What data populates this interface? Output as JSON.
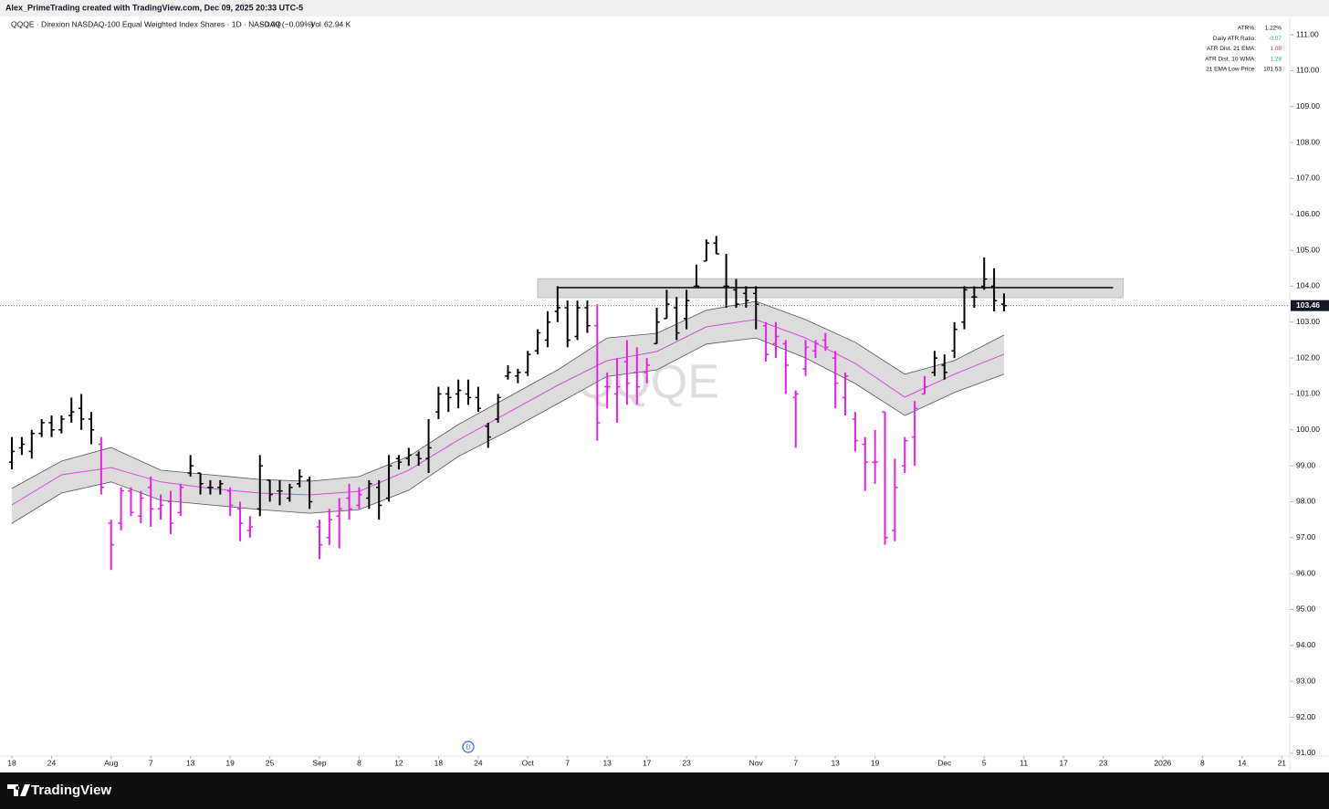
{
  "chart_data": {
    "type": "ohlc",
    "credit": "Alex_PrimeTrading created with TradingView.com, Dec 09, 2025 20:33 UTC-5",
    "title": "QQQE · Direxion NASDAQ-100 Equal Weighted Index Shares · 1D · NASDAQ",
    "change": "−0.09 (−0.09%)",
    "volume_label": "Vol",
    "volume": "62.94 K",
    "watermark": "QQQE",
    "brand": "TradingView",
    "info_table": [
      {
        "label": "ATR%:",
        "value": "1.22%",
        "color": "#131722"
      },
      {
        "label": "Daily ATR Ratio:",
        "value": "-0.07",
        "color": "#22ab94"
      },
      {
        "label": "ATR Dist. 21 EMA:",
        "value": "1.08",
        "color": "#f23645"
      },
      {
        "label": "ATR Dist. 10 WMA:",
        "value": "1.28",
        "color": "#22ab94"
      },
      {
        "label": "21 EMA Low Price:",
        "value": "101.53",
        "color": "#131722"
      }
    ],
    "xlim": [
      -1.2,
      128.8
    ],
    "xticks": [
      {
        "value": 0,
        "label": "18"
      },
      {
        "value": 4,
        "label": "24"
      },
      {
        "value": 10,
        "label": "Aug"
      },
      {
        "value": 14,
        "label": "7"
      },
      {
        "value": 18,
        "label": "13"
      },
      {
        "value": 22,
        "label": "19"
      },
      {
        "value": 26,
        "label": "25"
      },
      {
        "value": 31,
        "label": "Sep"
      },
      {
        "value": 35,
        "label": "8"
      },
      {
        "value": 39,
        "label": "12"
      },
      {
        "value": 43,
        "label": "18"
      },
      {
        "value": 47,
        "label": "24"
      },
      {
        "value": 52,
        "label": "Oct"
      },
      {
        "value": 56,
        "label": "7"
      },
      {
        "value": 60,
        "label": "13"
      },
      {
        "value": 64,
        "label": "17"
      },
      {
        "value": 68,
        "label": "23"
      },
      {
        "value": 75,
        "label": "Nov"
      },
      {
        "value": 79,
        "label": "7"
      },
      {
        "value": 83,
        "label": "13"
      },
      {
        "value": 87,
        "label": "19"
      },
      {
        "value": 94,
        "label": "Dec"
      },
      {
        "value": 98,
        "label": "5"
      },
      {
        "value": 102,
        "label": "11"
      },
      {
        "value": 106,
        "label": "17"
      },
      {
        "value": 110,
        "label": "23"
      },
      {
        "value": 116,
        "label": "2026"
      },
      {
        "value": 120,
        "label": "8"
      },
      {
        "value": 124,
        "label": "14"
      },
      {
        "value": 128,
        "label": "21"
      }
    ],
    "ylim": [
      90.92,
      111.51
    ],
    "yticks": [
      {
        "value": 91,
        "label": "91.00"
      },
      {
        "value": 92,
        "label": "92.00"
      },
      {
        "value": 93,
        "label": "93.00"
      },
      {
        "value": 94,
        "label": "94.00"
      },
      {
        "value": 95,
        "label": "95.00"
      },
      {
        "value": 96,
        "label": "96.00"
      },
      {
        "value": 97,
        "label": "97.00"
      },
      {
        "value": 98,
        "label": "98.00"
      },
      {
        "value": 99,
        "label": "99.00"
      },
      {
        "value": 100,
        "label": "100.00"
      },
      {
        "value": 101,
        "label": "101.00"
      },
      {
        "value": 102,
        "label": "102.00"
      },
      {
        "value": 103,
        "label": "103.00"
      },
      {
        "value": 104,
        "label": "104.00"
      },
      {
        "value": 105,
        "label": "105.00"
      },
      {
        "value": 106,
        "label": "106.00"
      },
      {
        "value": 107,
        "label": "107.00"
      },
      {
        "value": 108,
        "label": "108.00"
      },
      {
        "value": 109,
        "label": "109.00"
      },
      {
        "value": 110,
        "label": "110.00"
      },
      {
        "value": 111,
        "label": "111.00"
      }
    ],
    "bars": {
      "open": [
        99.1,
        99.5,
        99.4,
        99.9,
        100.2,
        100.0,
        100.4,
        100.6,
        100.3,
        99.6,
        97.4,
        97.4,
        98.3,
        97.6,
        98.4,
        97.8,
        98.0,
        97.7,
        98.8,
        98.8,
        98.4,
        98.4,
        98.3,
        97.8,
        97.2,
        97.8,
        98.6,
        98.3,
        98.1,
        98.5,
        98.6,
        97.3,
        97.0,
        97.6,
        98.1,
        97.9,
        98.1,
        98.4,
        98.1,
        99.2,
        99.2,
        99.3,
        99.2,
        100.5,
        101.0,
        101.0,
        101.0,
        100.9,
        100.1,
        100.3,
        101.5,
        101.5,
        101.6,
        102.2,
        102.5,
        103.3,
        103.4,
        102.6,
        103.4,
        102.9,
        101.2,
        101.0,
        101.9,
        101.6,
        101.6,
        102.4,
        103.1,
        103.4,
        103.1,
        104.0,
        104.7,
        105.2,
        104.0,
        103.9,
        103.8,
        103.8,
        102.9,
        102.4,
        102.4,
        100.9,
        101.7,
        102.2,
        102.5,
        102.0,
        100.9,
        100.3,
        99.6,
        99.1,
        100.5,
        97.2,
        99.0,
        99.8,
        101.0,
        101.6,
        101.8,
        102.2,
        103.0,
        103.7,
        104.0,
        104.0,
        103.5
      ],
      "high": [
        99.8,
        99.8,
        100.0,
        100.3,
        100.4,
        100.4,
        100.9,
        101.0,
        100.5,
        99.8,
        97.5,
        98.4,
        98.4,
        98.3,
        98.7,
        98.2,
        98.3,
        98.5,
        99.3,
        98.8,
        98.6,
        98.6,
        98.4,
        98.0,
        97.6,
        99.3,
        98.6,
        98.6,
        98.5,
        98.9,
        98.7,
        97.5,
        97.8,
        98.1,
        98.5,
        98.4,
        98.6,
        98.6,
        99.3,
        99.3,
        99.5,
        99.4,
        100.3,
        101.2,
        101.2,
        101.4,
        101.4,
        101.2,
        100.2,
        101.0,
        101.8,
        101.7,
        102.2,
        102.8,
        103.3,
        104.0,
        103.6,
        103.6,
        103.6,
        103.5,
        101.6,
        102.0,
        102.5,
        102.3,
        102.0,
        103.4,
        103.9,
        103.7,
        103.9,
        104.6,
        105.3,
        105.4,
        104.9,
        104.2,
        104.0,
        104.0,
        103.0,
        103.0,
        102.5,
        101.1,
        102.5,
        102.5,
        102.7,
        102.2,
        101.6,
        100.5,
        99.8,
        100.0,
        100.5,
        99.2,
        99.8,
        100.8,
        101.5,
        102.2,
        102.1,
        103.0,
        104.0,
        104.0,
        104.8,
        104.5,
        103.8
      ],
      "low": [
        98.9,
        99.3,
        99.2,
        99.8,
        99.8,
        99.9,
        100.2,
        100.0,
        99.6,
        98.2,
        96.1,
        97.2,
        97.6,
        97.4,
        97.3,
        97.5,
        97.1,
        97.6,
        98.7,
        98.2,
        98.2,
        98.2,
        97.6,
        96.9,
        97.0,
        97.6,
        98.0,
        97.9,
        98.0,
        98.4,
        97.8,
        96.4,
        96.8,
        96.7,
        97.5,
        97.8,
        97.8,
        97.5,
        98.0,
        98.9,
        99.0,
        99.0,
        98.8,
        100.3,
        100.5,
        100.6,
        100.7,
        100.5,
        99.5,
        100.2,
        101.4,
        101.3,
        101.5,
        102.1,
        102.3,
        103.0,
        102.3,
        102.5,
        102.7,
        99.7,
        100.6,
        100.2,
        100.7,
        100.7,
        101.3,
        102.4,
        103.1,
        102.5,
        102.8,
        104.0,
        104.7,
        104.9,
        103.4,
        103.4,
        103.4,
        102.8,
        101.9,
        102.0,
        101.0,
        99.5,
        101.5,
        102.0,
        102.2,
        100.6,
        100.4,
        99.4,
        98.3,
        98.5,
        96.8,
        96.9,
        98.8,
        99.0,
        101.0,
        101.5,
        101.4,
        102.0,
        102.8,
        103.4,
        103.9,
        103.3,
        103.3
      ],
      "close": [
        99.4,
        99.6,
        99.9,
        100.2,
        100.0,
        100.3,
        100.5,
        100.3,
        100.0,
        98.4,
        96.8,
        98.3,
        97.7,
        98.1,
        97.8,
        97.9,
        97.4,
        98.4,
        99.0,
        98.5,
        98.4,
        98.5,
        97.9,
        97.4,
        97.3,
        99.0,
        98.2,
        98.3,
        98.4,
        98.7,
        98.0,
        96.8,
        97.5,
        97.8,
        97.8,
        98.2,
        98.5,
        97.9,
        99.0,
        99.1,
        99.3,
        99.2,
        99.5,
        101.0,
        100.9,
        101.1,
        100.9,
        100.6,
        99.8,
        100.9,
        101.6,
        101.6,
        102.1,
        102.7,
        103.0,
        103.4,
        102.5,
        103.4,
        102.9,
        100.2,
        101.2,
        101.2,
        101.3,
        101.2,
        101.8,
        103.0,
        103.5,
        102.7,
        103.6,
        104.0,
        105.2,
        104.9,
        104.0,
        103.5,
        103.6,
        103.5,
        102.1,
        102.6,
        101.8,
        101.0,
        102.3,
        102.4,
        102.3,
        101.3,
        101.5,
        99.7,
        99.1,
        99.1,
        97.0,
        98.4,
        99.7,
        100.6,
        101.2,
        102.0,
        101.6,
        102.8,
        103.9,
        103.7,
        104.2,
        103.6,
        103.46
      ],
      "colors": [
        "#000000",
        "#000000",
        "#000000",
        "#000000",
        "#000000",
        "#000000",
        "#000000",
        "#000000",
        "#000000",
        "#e91ee9",
        "#e91ee9",
        "#e91ee9",
        "#e91ee9",
        "#e91ee9",
        "#e91ee9",
        "#e91ee9",
        "#e91ee9",
        "#e91ee9",
        "#000000",
        "#000000",
        "#000000",
        "#000000",
        "#e91ee9",
        "#e91ee9",
        "#e91ee9",
        "#000000",
        "#000000",
        "#000000",
        "#000000",
        "#000000",
        "#000000",
        "#e91ee9",
        "#e91ee9",
        "#e91ee9",
        "#e91ee9",
        "#e91ee9",
        "#000000",
        "#000000",
        "#000000",
        "#000000",
        "#000000",
        "#000000",
        "#000000",
        "#000000",
        "#000000",
        "#000000",
        "#000000",
        "#000000",
        "#000000",
        "#000000",
        "#000000",
        "#000000",
        "#000000",
        "#000000",
        "#000000",
        "#000000",
        "#000000",
        "#000000",
        "#000000",
        "#e91ee9",
        "#e91ee9",
        "#e91ee9",
        "#e91ee9",
        "#e91ee9",
        "#e91ee9",
        "#000000",
        "#000000",
        "#000000",
        "#000000",
        "#000000",
        "#000000",
        "#000000",
        "#000000",
        "#000000",
        "#000000",
        "#000000",
        "#e91ee9",
        "#e91ee9",
        "#e91ee9",
        "#e91ee9",
        "#e91ee9",
        "#e91ee9",
        "#e91ee9",
        "#e91ee9",
        "#e91ee9",
        "#e91ee9",
        "#e91ee9",
        "#e91ee9",
        "#e91ee9",
        "#e91ee9",
        "#e91ee9",
        "#e91ee9",
        "#e91ee9",
        "#000000",
        "#000000",
        "#000000",
        "#000000",
        "#000000",
        "#000000",
        "#000000",
        "#000000"
      ]
    },
    "band": {
      "x": [
        0,
        5,
        10,
        15,
        20,
        25,
        30,
        35,
        40,
        45,
        50,
        55,
        60,
        65,
        70,
        75,
        80,
        85,
        90,
        95,
        100
      ],
      "upper": [
        98.37,
        99.13,
        99.51,
        98.88,
        98.75,
        98.62,
        98.57,
        98.7,
        99.26,
        100.15,
        100.91,
        101.67,
        102.56,
        102.69,
        103.33,
        103.58,
        103.07,
        102.44,
        101.55,
        101.93,
        102.64
      ],
      "middle": [
        97.91,
        98.75,
        98.95,
        98.55,
        98.37,
        98.24,
        98.19,
        98.29,
        98.88,
        99.72,
        100.48,
        101.24,
        101.93,
        102.18,
        102.87,
        103.07,
        102.56,
        101.85,
        100.91,
        101.55,
        102.11
      ],
      "lower": [
        97.4,
        98.24,
        98.55,
        98.04,
        97.91,
        97.78,
        97.68,
        97.78,
        98.32,
        99.26,
        99.97,
        100.73,
        101.49,
        101.67,
        102.39,
        102.56,
        102.0,
        101.29,
        100.4,
        101.04,
        101.55
      ],
      "fill": "#dcdcdc",
      "edge_color": "#555555",
      "middle_color": "#d050d0"
    },
    "resistance_zone": {
      "x": [
        53,
        112
      ],
      "y": [
        103.68,
        104.21
      ],
      "color": "#d4d4d4"
    },
    "resistance_line": {
      "x": [
        55,
        111
      ],
      "y": 103.96
    },
    "last_price": 103.46,
    "dividend": {
      "x": 46,
      "label": "D"
    }
  }
}
